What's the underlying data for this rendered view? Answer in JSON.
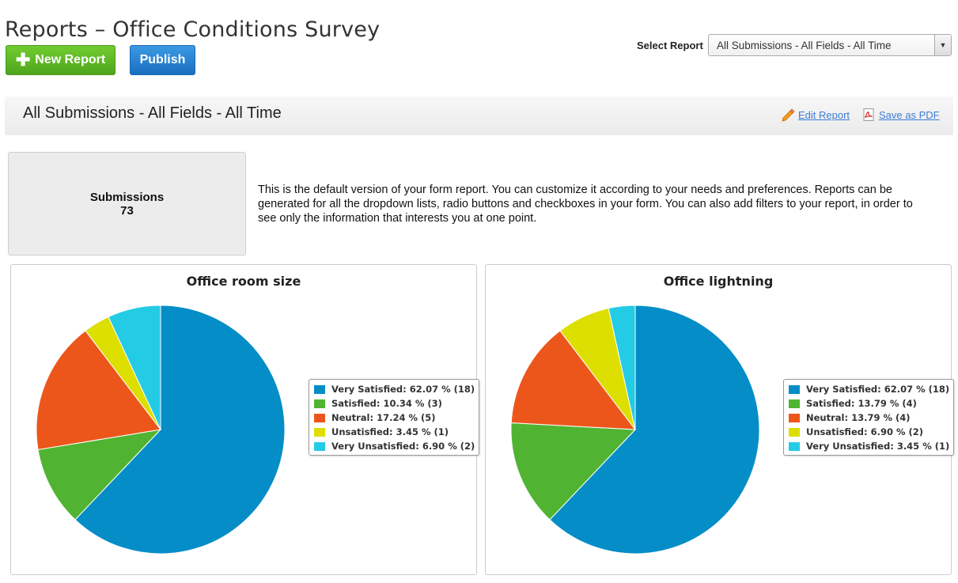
{
  "page": {
    "title": "Reports – Office Conditions Survey"
  },
  "toolbar": {
    "new_report_label": "New Report",
    "publish_label": "Publish"
  },
  "select_report": {
    "label": "Select Report",
    "value": "All Submissions - All Fields - All Time"
  },
  "report_bar": {
    "title": "All Submissions - All Fields - All Time",
    "edit_label": "Edit Report",
    "pdf_label": "Save as PDF"
  },
  "submissions": {
    "label": "Submissions",
    "count": "73"
  },
  "description": "This is the default version of your form report. You can customize it according to your needs and preferences. Reports can be generated for all the dropdown lists, radio buttons and checkboxes in your form. You can also add filters to your report, in order to see only the information that interests you at one point.",
  "colors": {
    "very_satisfied": "#058dc7",
    "satisfied": "#50b432",
    "neutral": "#ed561b",
    "unsatisfied": "#dddf00",
    "very_unsatisfied": "#24cbe5"
  },
  "chart_data": [
    {
      "type": "pie",
      "title": "Office room size",
      "slices": [
        {
          "name": "Very Satisfied",
          "value": 62.07,
          "count": 18,
          "color": "#058dc7",
          "legend": "Very Satisfied: 62.07 % (18)"
        },
        {
          "name": "Satisfied",
          "value": 10.34,
          "count": 3,
          "color": "#50b432",
          "legend": "Satisfied: 10.34 % (3)"
        },
        {
          "name": "Neutral",
          "value": 17.24,
          "count": 5,
          "color": "#ed561b",
          "legend": "Neutral: 17.24 % (5)"
        },
        {
          "name": "Unsatisfied",
          "value": 3.45,
          "count": 1,
          "color": "#dddf00",
          "legend": "Unsatisfied: 3.45 % (1)"
        },
        {
          "name": "Very Unsatisfied",
          "value": 6.9,
          "count": 2,
          "color": "#24cbe5",
          "legend": "Very Unsatisfied: 6.90 % (2)"
        }
      ]
    },
    {
      "type": "pie",
      "title": "Office lightning",
      "slices": [
        {
          "name": "Very Satisfied",
          "value": 62.07,
          "count": 18,
          "color": "#058dc7",
          "legend": "Very Satisfied: 62.07 % (18)"
        },
        {
          "name": "Satisfied",
          "value": 13.79,
          "count": 4,
          "color": "#50b432",
          "legend": "Satisfied: 13.79 % (4)"
        },
        {
          "name": "Neutral",
          "value": 13.79,
          "count": 4,
          "color": "#ed561b",
          "legend": "Neutral: 13.79 % (4)"
        },
        {
          "name": "Unsatisfied",
          "value": 6.9,
          "count": 2,
          "color": "#dddf00",
          "legend": "Unsatisfied: 6.90 % (2)"
        },
        {
          "name": "Very Unsatisfied",
          "value": 3.45,
          "count": 1,
          "color": "#24cbe5",
          "legend": "Very Unsatisfied: 3.45 % (1)"
        }
      ]
    }
  ]
}
